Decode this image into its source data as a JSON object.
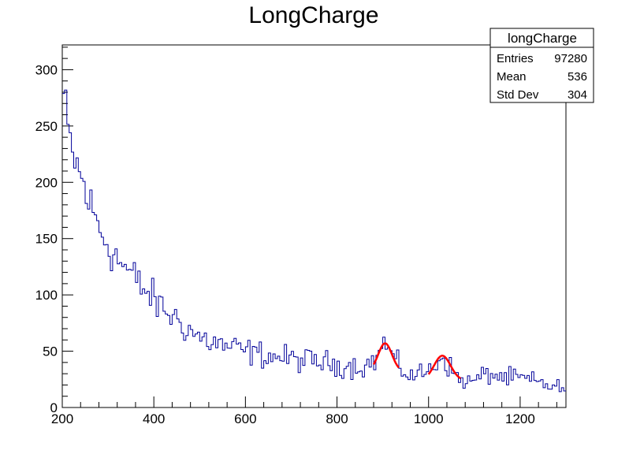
{
  "chart_data": {
    "type": "histogram",
    "title": "LongCharge",
    "xlabel": "",
    "ylabel": "",
    "xlim": [
      200,
      1300
    ],
    "ylim": [
      0,
      322
    ],
    "x_ticks": [
      200,
      400,
      600,
      800,
      1000,
      1200
    ],
    "y_ticks": [
      0,
      50,
      100,
      150,
      200,
      250,
      300
    ],
    "bin_width": 5,
    "series": [
      {
        "name": "longCharge",
        "color": "#000099",
        "style": "step",
        "envelope": {
          "description": "steeply falling spectrum with two peaks, read from the figure",
          "x": [
            200,
            210,
            220,
            240,
            260,
            280,
            300,
            320,
            350,
            400,
            450,
            500,
            550,
            600,
            650,
            700,
            750,
            800,
            850,
            880,
            905,
            930,
            960,
            1000,
            1030,
            1060,
            1090,
            1130,
            1170,
            1200,
            1250,
            1300
          ],
          "y": [
            285,
            250,
            228,
            205,
            180,
            160,
            145,
            132,
            118,
            95,
            78,
            62,
            55,
            50,
            46,
            43,
            41,
            38,
            36,
            40,
            58,
            38,
            28,
            32,
            46,
            27,
            22,
            30,
            26,
            26,
            21,
            16
          ]
        }
      },
      {
        "name": "fit-peak-1",
        "color": "#ff0000",
        "style": "curve",
        "function": "gaussian",
        "range": [
          880,
          935
        ],
        "peak": 57,
        "mean": 905,
        "sigma": 15,
        "baseline": 32
      },
      {
        "name": "fit-peak-2",
        "color": "#ff0000",
        "style": "curve",
        "function": "gaussian",
        "range": [
          1000,
          1070
        ],
        "peak": 46,
        "mean": 1030,
        "sigma": 18,
        "baseline": 24
      }
    ]
  },
  "stats_box": {
    "title": "longCharge",
    "rows": [
      {
        "label": "Entries",
        "value": "97280"
      },
      {
        "label": "Mean",
        "value": "536"
      },
      {
        "label": "Std Dev",
        "value": "304"
      }
    ]
  }
}
